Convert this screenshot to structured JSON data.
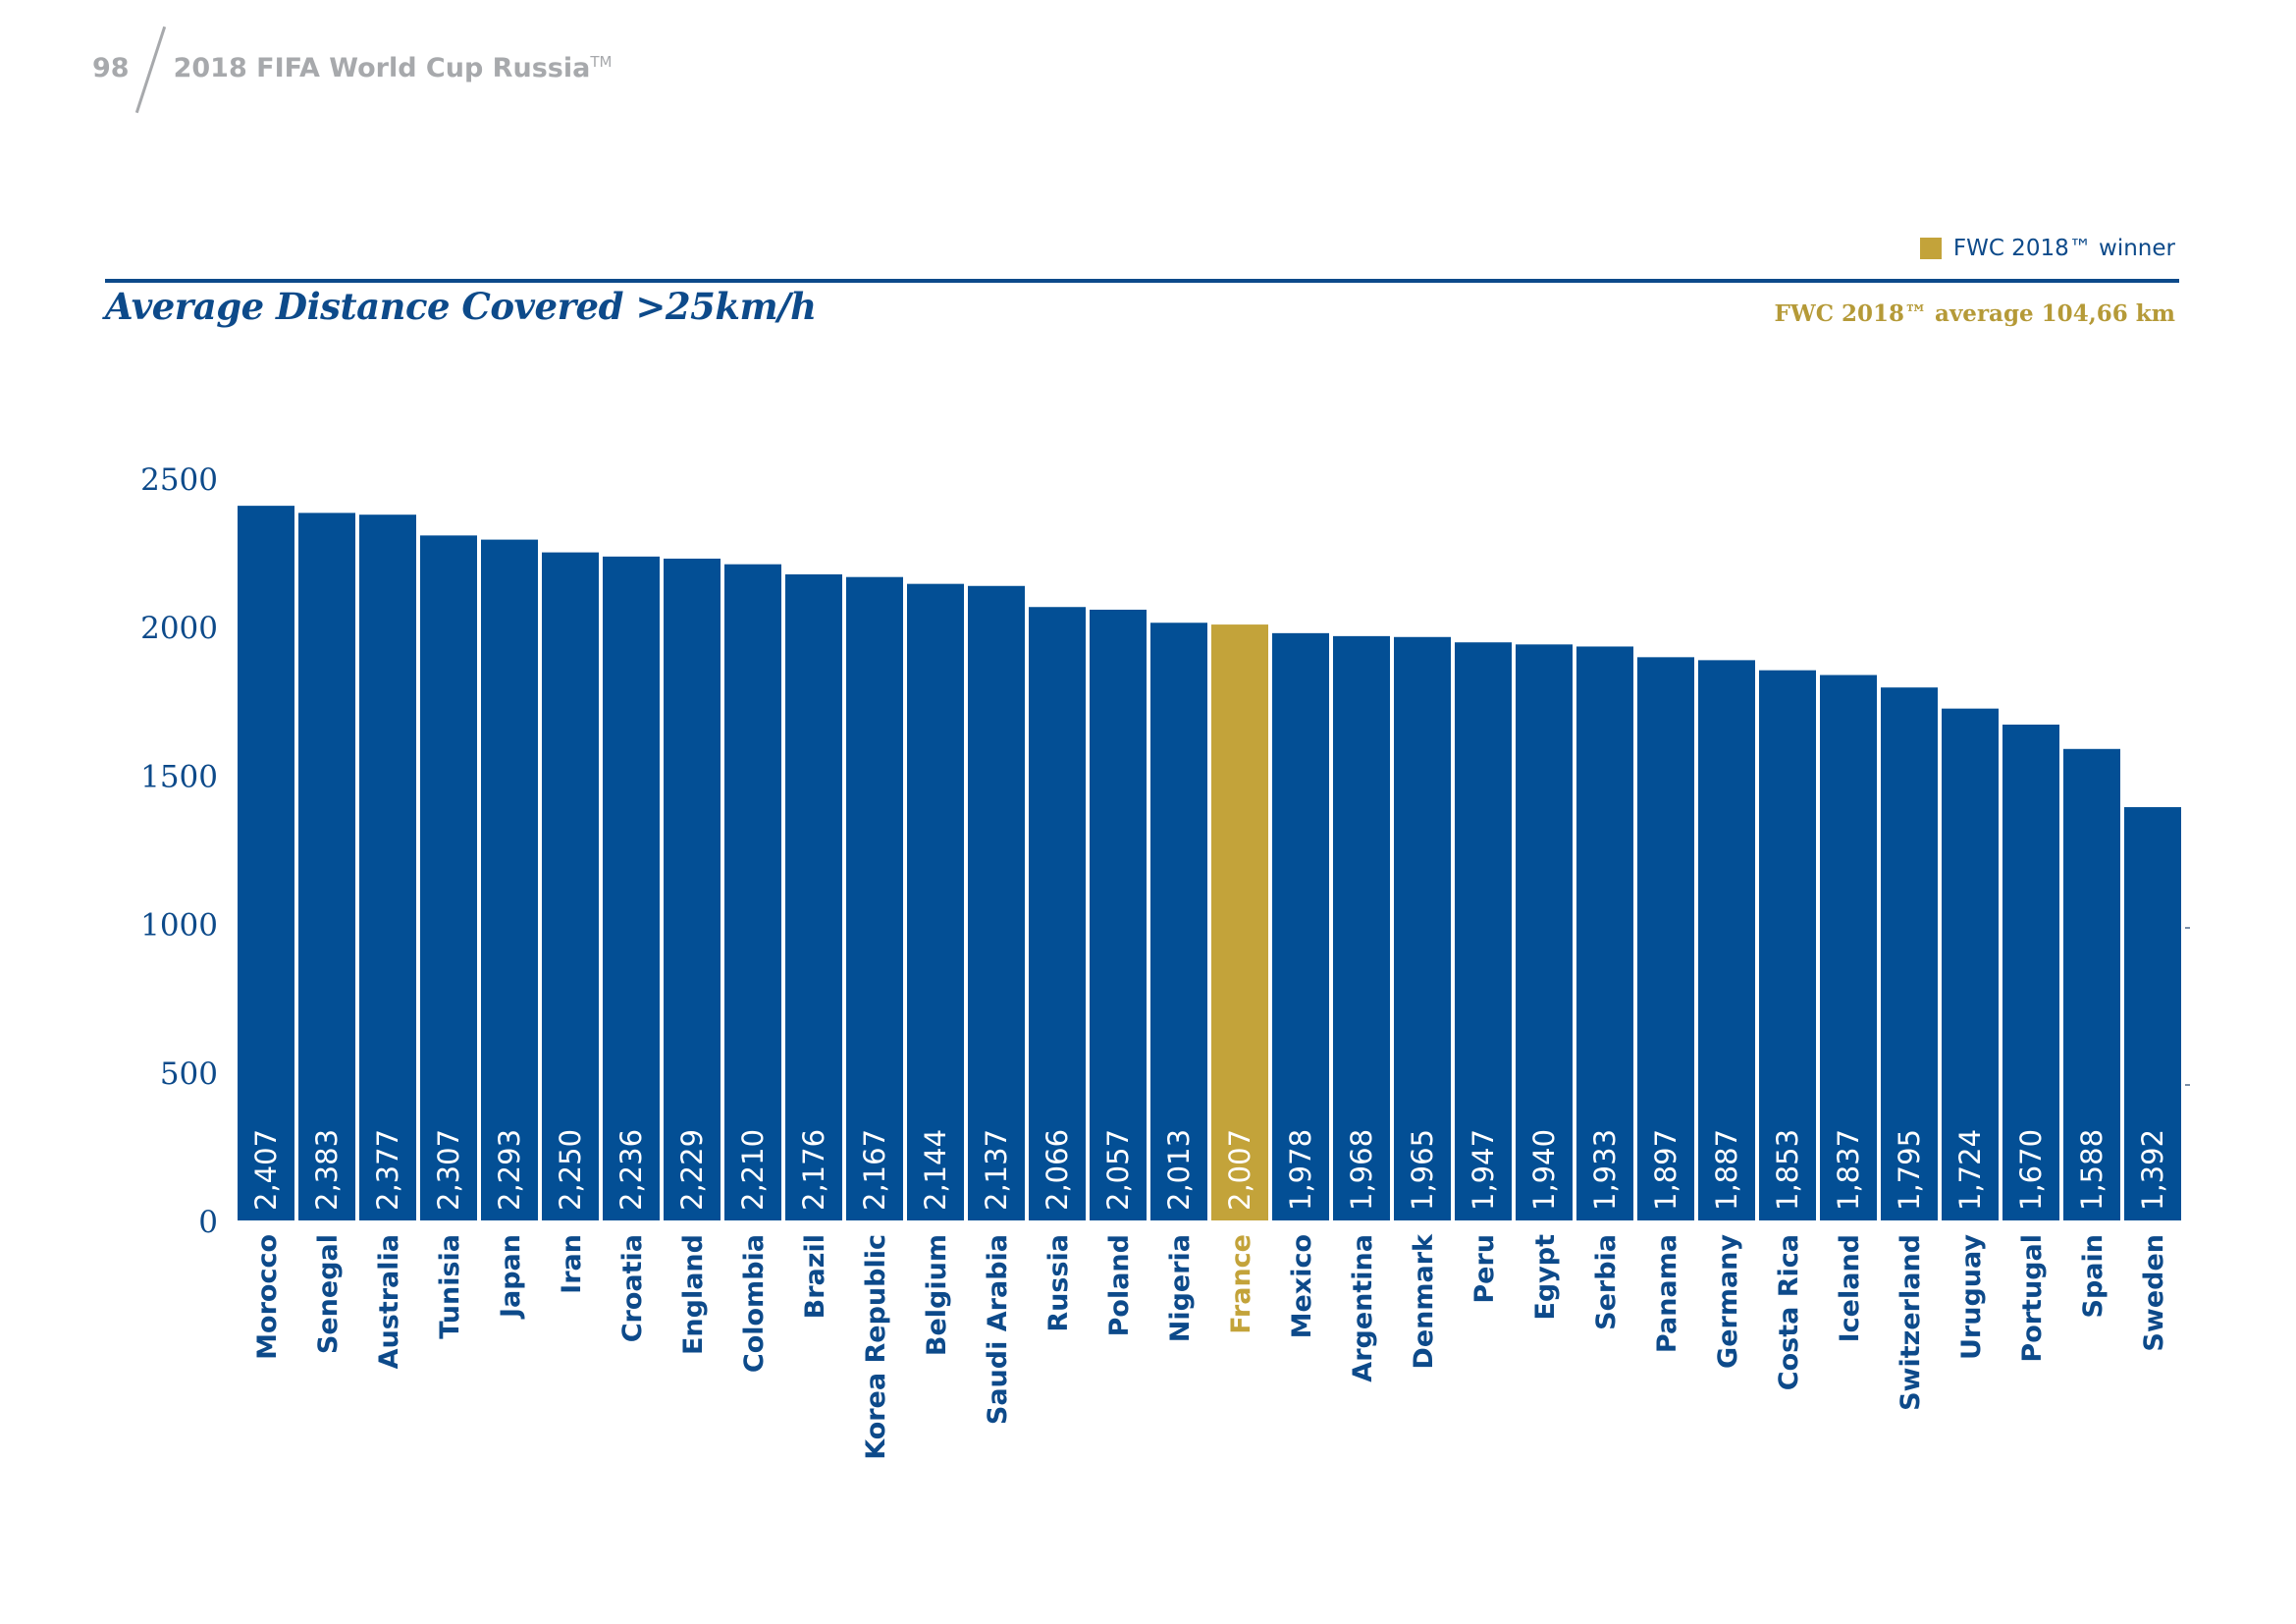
{
  "header": {
    "page_number": "98",
    "title": "2018 FIFA World Cup Russia",
    "title_mark": "TM"
  },
  "legend": {
    "label": "FWC 2018™ winner",
    "color": "#c3a33a"
  },
  "average_note": "FWC 2018™ average 104,66 km",
  "colors": {
    "bar": "#034f95",
    "highlight": "#c3a33a",
    "label_text_on_bar": "#ffffff",
    "axis_text": "#0d4a8a"
  },
  "chart_data": {
    "type": "bar",
    "title": "Average Distance Covered >25km/h",
    "xlabel": "",
    "ylabel": "",
    "ylim": [
      0,
      2500
    ],
    "yticks": [
      "0",
      "500",
      "1000",
      "1500",
      "2000",
      "2500"
    ],
    "grid": false,
    "categories": [
      "Morocco",
      "Senegal",
      "Australia",
      "Tunisia",
      "Japan",
      "Iran",
      "Croatia",
      "England",
      "Colombia",
      "Brazil",
      "Korea Republic",
      "Belgium",
      "Saudi Arabia",
      "Russia",
      "Poland",
      "Nigeria",
      "France",
      "Mexico",
      "Argentina",
      "Denmark",
      "Peru",
      "Egypt",
      "Serbia",
      "Panama",
      "Germany",
      "Costa Rica",
      "Iceland",
      "Switzerland",
      "Uruguay",
      "Portugal",
      "Spain",
      "Sweden"
    ],
    "values": [
      2407,
      2383,
      2377,
      2307,
      2293,
      2250,
      2236,
      2229,
      2210,
      2176,
      2167,
      2144,
      2137,
      2066,
      2057,
      2013,
      2007,
      1978,
      1968,
      1965,
      1947,
      1940,
      1933,
      1897,
      1887,
      1853,
      1837,
      1795,
      1724,
      1670,
      1588,
      1392
    ],
    "value_labels": [
      "2,407",
      "2,383",
      "2,377",
      "2,307",
      "2,293",
      "2,250",
      "2,236",
      "2,229",
      "2,210",
      "2,176",
      "2,167",
      "2,144",
      "2,137",
      "2,066",
      "2,057",
      "2,013",
      "2,007",
      "1,978",
      "1,968",
      "1,965",
      "1,947",
      "1,940",
      "1,933",
      "1,897",
      "1,887",
      "1,853",
      "1,837",
      "1,795",
      "1,724",
      "1,670",
      "1,588",
      "1,392"
    ],
    "highlight": "France"
  }
}
